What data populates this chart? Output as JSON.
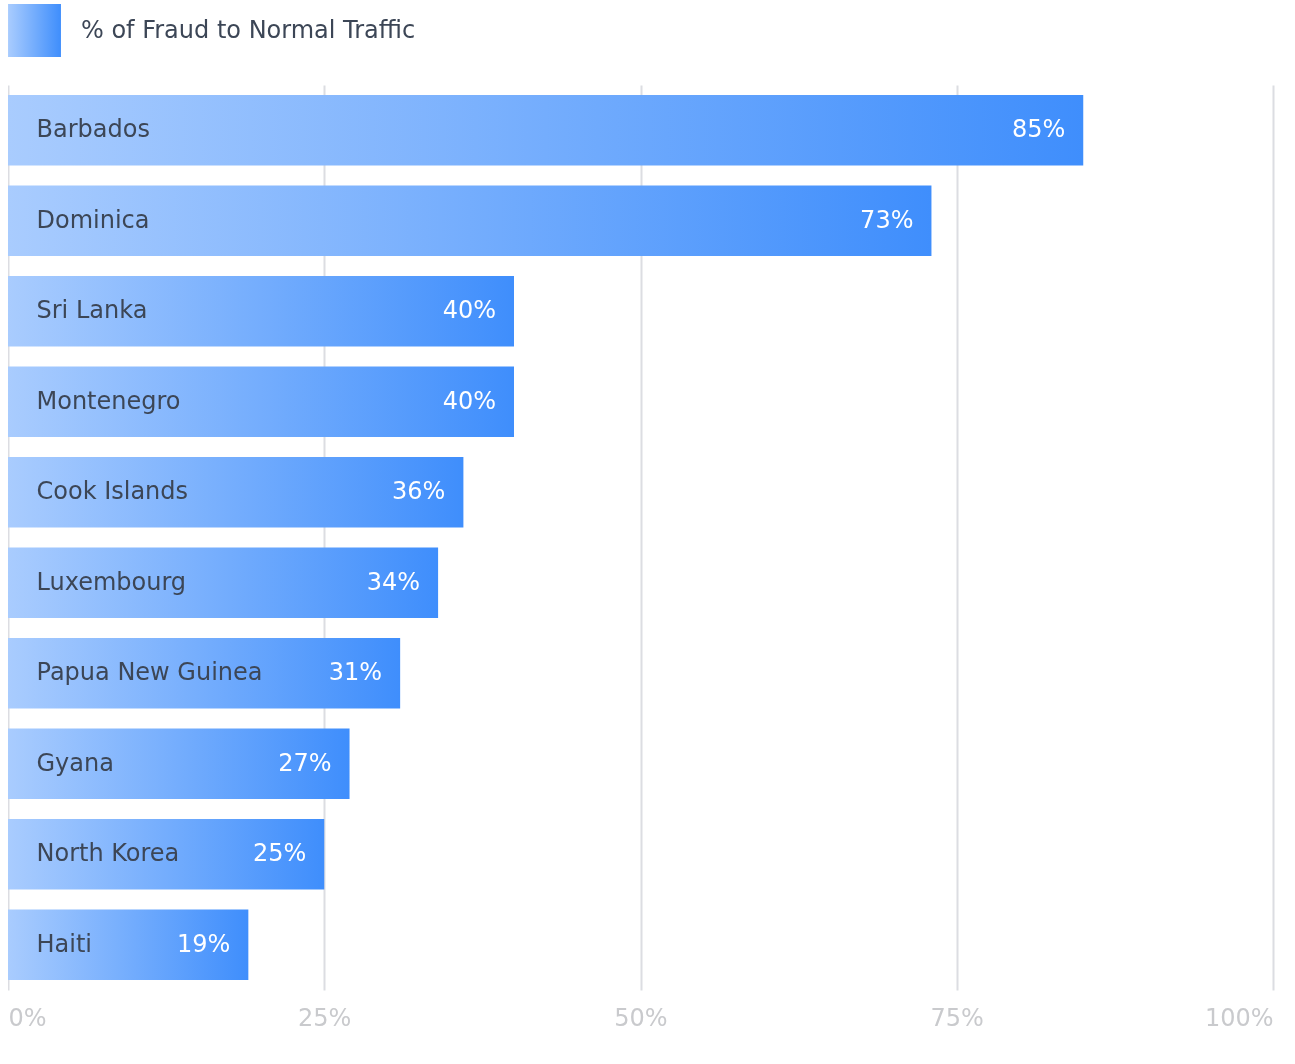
{
  "chart_data": {
    "type": "bar",
    "orientation": "horizontal",
    "categories": [
      "Barbados",
      "Dominica",
      "Sri Lanka",
      "Montenegro",
      "Cook Islands",
      "Luxembourg",
      "Papua New Guinea",
      "Gyana",
      "North Korea",
      "Haiti"
    ],
    "series": [
      {
        "name": "% of Fraud to Normal Traffic",
        "color": "#3f8efc",
        "values": [
          85,
          73,
          40,
          40,
          36,
          34,
          31,
          27,
          25,
          19
        ],
        "value_labels": [
          "85%",
          "73%",
          "40%",
          "40%",
          "36%",
          "34%",
          "31%",
          "27%",
          "25%",
          "19%"
        ]
      }
    ],
    "xlim": [
      0,
      100
    ],
    "xticks": [
      {
        "value": 0,
        "label": "0%"
      },
      {
        "value": 25,
        "label": "25%"
      },
      {
        "value": 50,
        "label": "50%"
      },
      {
        "value": 75,
        "label": "75%"
      },
      {
        "value": 100,
        "label": "100%"
      }
    ],
    "grid": "x",
    "legend": "top left"
  }
}
